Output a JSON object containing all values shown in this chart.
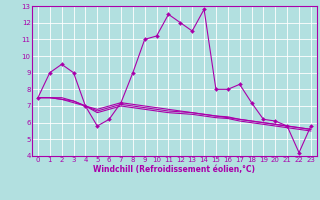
{
  "xlabel": "Windchill (Refroidissement éolien,°C)",
  "ylabel": "",
  "bg_color": "#b2e0e0",
  "grid_color": "#ffffff",
  "line_color": "#aa00aa",
  "xlim": [
    -0.5,
    23.5
  ],
  "ylim": [
    4,
    13
  ],
  "xticks": [
    0,
    1,
    2,
    3,
    4,
    5,
    6,
    7,
    8,
    9,
    10,
    11,
    12,
    13,
    14,
    15,
    16,
    17,
    18,
    19,
    20,
    21,
    22,
    23
  ],
  "yticks": [
    4,
    5,
    6,
    7,
    8,
    9,
    10,
    11,
    12,
    13
  ],
  "line1_x": [
    0,
    1,
    2,
    3,
    4,
    5,
    6,
    7,
    8,
    9,
    10,
    11,
    12,
    13,
    14,
    15,
    16,
    17,
    18,
    19,
    20,
    21,
    22,
    23
  ],
  "line1_y": [
    7.5,
    9.0,
    9.5,
    9.0,
    7.0,
    5.8,
    6.2,
    7.2,
    9.0,
    11.0,
    11.2,
    12.5,
    12.0,
    11.5,
    12.8,
    8.0,
    8.0,
    8.3,
    7.2,
    6.2,
    6.1,
    5.8,
    4.2,
    5.8
  ],
  "line2_x": [
    0,
    1,
    2,
    3,
    4,
    5,
    6,
    7,
    8,
    9,
    10,
    11,
    12,
    13,
    14,
    15,
    16,
    17,
    18,
    19,
    20,
    21,
    22,
    23
  ],
  "line2_y": [
    7.5,
    7.5,
    7.5,
    7.3,
    7.0,
    6.8,
    7.0,
    7.2,
    7.1,
    7.0,
    6.9,
    6.8,
    6.7,
    6.6,
    6.5,
    6.4,
    6.3,
    6.2,
    6.1,
    6.0,
    5.9,
    5.8,
    5.7,
    5.6
  ],
  "line3_x": [
    0,
    1,
    2,
    3,
    4,
    5,
    6,
    7,
    8,
    9,
    10,
    11,
    12,
    13,
    14,
    15,
    16,
    17,
    18,
    19,
    20,
    21,
    22,
    23
  ],
  "line3_y": [
    7.5,
    7.5,
    7.4,
    7.3,
    7.0,
    6.7,
    6.9,
    7.1,
    7.0,
    6.9,
    6.8,
    6.7,
    6.65,
    6.6,
    6.5,
    6.4,
    6.35,
    6.2,
    6.1,
    6.0,
    5.9,
    5.8,
    5.7,
    5.6
  ],
  "line4_x": [
    0,
    1,
    2,
    3,
    4,
    5,
    6,
    7,
    8,
    9,
    10,
    11,
    12,
    13,
    14,
    15,
    16,
    17,
    18,
    19,
    20,
    21,
    22,
    23
  ],
  "line4_y": [
    7.5,
    7.5,
    7.4,
    7.2,
    7.0,
    6.6,
    6.8,
    7.0,
    6.9,
    6.8,
    6.7,
    6.6,
    6.55,
    6.5,
    6.4,
    6.3,
    6.25,
    6.1,
    6.0,
    5.9,
    5.8,
    5.7,
    5.6,
    5.5
  ],
  "tick_fontsize": 5.0,
  "xlabel_fontsize": 5.5
}
